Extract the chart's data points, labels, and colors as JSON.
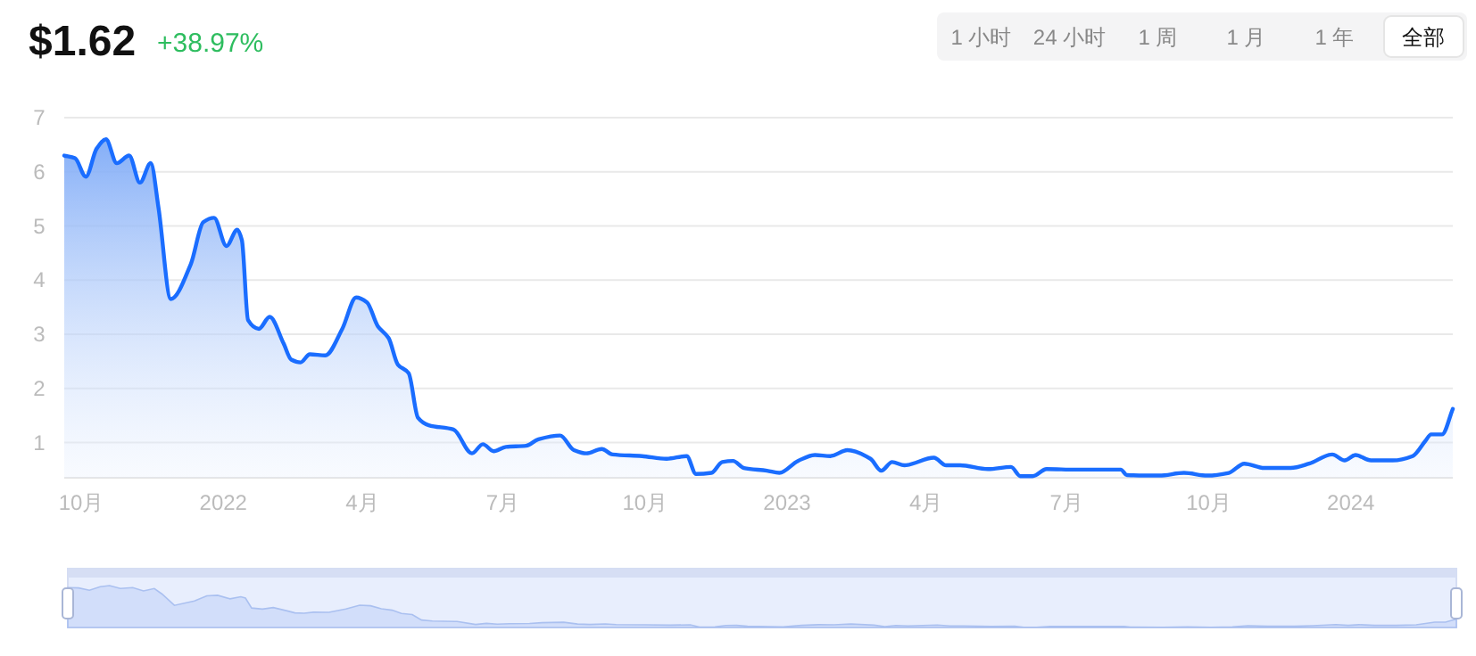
{
  "chart_data": {
    "type": "area",
    "title": "$1.62",
    "subtitle": "+38.97%",
    "annotations": [
      "1 小时",
      "24 小时",
      "1 周",
      "1 月",
      "1 年",
      "全部"
    ],
    "x": [
      "2021-09-20",
      "2021-09-27",
      "2021-10-04",
      "2021-10-11",
      "2021-10-17",
      "2021-10-24",
      "2021-11-01",
      "2021-11-08",
      "2021-11-15",
      "2021-11-20",
      "2021-11-28",
      "2021-12-11",
      "2021-12-19",
      "2021-12-26",
      "2022-01-03",
      "2022-01-10",
      "2022-01-13",
      "2022-01-17",
      "2022-01-24",
      "2022-01-31",
      "2022-02-09",
      "2022-02-14",
      "2022-02-20",
      "2022-02-26",
      "2022-03-08",
      "2022-03-19",
      "2022-03-28",
      "2022-04-04",
      "2022-04-11",
      "2022-04-18",
      "2022-04-24",
      "2022-05-01",
      "2022-05-07",
      "2022-05-14",
      "2022-05-30",
      "2022-06-11",
      "2022-06-18",
      "2022-06-25",
      "2022-07-03",
      "2022-07-16",
      "2022-07-24",
      "2022-08-07",
      "2022-08-16",
      "2022-08-24",
      "2022-09-03",
      "2022-09-10",
      "2022-09-29",
      "2022-10-15",
      "2022-10-28",
      "2022-11-03",
      "2022-11-13",
      "2022-11-20",
      "2022-11-27",
      "2022-12-04",
      "2022-12-19",
      "2022-12-27",
      "2023-01-08",
      "2023-01-19",
      "2023-01-29",
      "2023-02-09",
      "2023-02-24",
      "2023-03-03",
      "2023-03-10",
      "2023-03-18",
      "2023-04-06",
      "2023-04-14",
      "2023-04-23",
      "2023-05-11",
      "2023-05-26",
      "2023-06-01",
      "2023-06-09",
      "2023-06-18",
      "2023-07-07",
      "2023-08-05",
      "2023-08-09",
      "2023-08-30",
      "2023-09-15",
      "2023-09-30",
      "2023-10-14",
      "2023-10-24",
      "2023-11-06",
      "2023-11-23",
      "2023-12-05",
      "2023-12-20",
      "2023-12-28",
      "2024-01-04",
      "2024-01-14",
      "2024-01-28",
      "2024-02-10",
      "2024-02-18",
      "2024-02-22",
      "2024-02-29",
      "2024-03-07"
    ],
    "series": [
      {
        "color": "#1a6dff",
        "values": [
          6.3,
          6.25,
          5.91,
          6.43,
          6.6,
          6.16,
          6.3,
          5.8,
          6.16,
          5.34,
          3.65,
          4.3,
          5.07,
          5.15,
          4.63,
          4.93,
          4.74,
          3.26,
          3.1,
          3.32,
          2.83,
          2.53,
          2.48,
          2.63,
          2.61,
          3.1,
          3.68,
          3.59,
          3.15,
          2.93,
          2.44,
          2.28,
          1.46,
          1.32,
          1.24,
          0.8,
          0.97,
          0.84,
          0.92,
          0.94,
          1.06,
          1.13,
          0.86,
          0.8,
          0.88,
          0.78,
          0.75,
          0.7,
          0.75,
          0.42,
          0.44,
          0.64,
          0.66,
          0.53,
          0.48,
          0.44,
          0.66,
          0.77,
          0.75,
          0.86,
          0.7,
          0.48,
          0.64,
          0.58,
          0.72,
          0.58,
          0.58,
          0.51,
          0.55,
          0.38,
          0.38,
          0.51,
          0.5,
          0.5,
          0.4,
          0.39,
          0.44,
          0.39,
          0.44,
          0.61,
          0.53,
          0.53,
          0.61,
          0.78,
          0.67,
          0.77,
          0.67,
          0.67,
          0.75,
          1.02,
          1.15,
          1.15,
          1.62
        ]
      }
    ],
    "xlim": [
      "2021-09-20",
      "2024-03-07"
    ],
    "xticks": [
      {
        "value": "2021-10-01",
        "label": "10月"
      },
      {
        "value": "2022-01-01",
        "label": "2022"
      },
      {
        "value": "2022-04-01",
        "label": "4月"
      },
      {
        "value": "2022-07-01",
        "label": "7月"
      },
      {
        "value": "2022-10-01",
        "label": "10月"
      },
      {
        "value": "2023-01-01",
        "label": "2023"
      },
      {
        "value": "2023-04-01",
        "label": "4月"
      },
      {
        "value": "2023-07-01",
        "label": "7月"
      },
      {
        "value": "2023-10-01",
        "label": "10月"
      },
      {
        "value": "2024-01-01",
        "label": "2024"
      }
    ],
    "ylim": [
      0.35,
      7
    ],
    "yticks": [
      1,
      2,
      3,
      4,
      5,
      6,
      7
    ],
    "grid": "y"
  }
}
